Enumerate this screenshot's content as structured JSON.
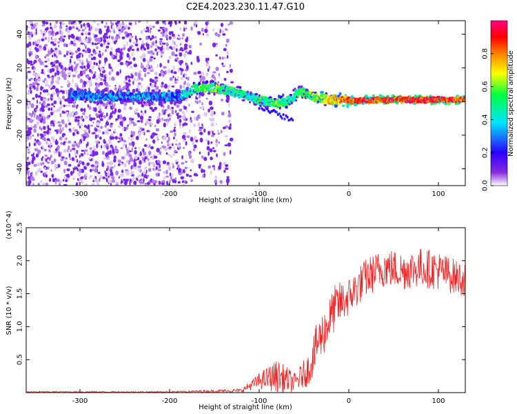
{
  "title": "C2E4.2023.230.11.47.G10",
  "chart_data": [
    {
      "type": "heatmap",
      "name": "spectrogram",
      "xlabel": "Height of straight line (km)",
      "ylabel": "Frequency (Hz)",
      "xlim": [
        -360,
        130
      ],
      "ylim": [
        -50,
        48
      ],
      "xticks": [
        -300,
        -200,
        -100,
        0,
        100
      ],
      "xtick_labels": [
        "-300",
        "-200",
        "-100",
        "0",
        "100"
      ],
      "yticks": [
        -40,
        -20,
        0,
        20,
        40
      ],
      "ytick_labels": [
        "-40",
        "-20",
        "0",
        "20",
        "40"
      ],
      "colorbar": {
        "label": "Normalized spectral amplitude",
        "range": [
          0,
          1
        ],
        "ticks": [
          0.0,
          0.2,
          0.4,
          0.6,
          0.8
        ],
        "tick_labels": [
          "0.0",
          "0.2",
          "0.4",
          "0.6",
          "0.8"
        ],
        "colors": [
          "#ffffff",
          "#8a2be2",
          "#2b00ff",
          "#00e5ff",
          "#00ff40",
          "#ffff00",
          "#ff8000",
          "#ff0000",
          "#ff0080"
        ]
      },
      "ridge": {
        "x": [
          -310,
          -280,
          -250,
          -220,
          -190,
          -170,
          -150,
          -130,
          -110,
          -95,
          -80,
          -65,
          -55,
          -45,
          -35,
          -20,
          -10,
          0,
          20,
          50,
          80,
          110,
          130
        ],
        "freq": [
          4,
          3,
          3,
          3,
          3,
          8,
          8,
          6,
          3,
          0,
          -1,
          1,
          6,
          4,
          2,
          1,
          1,
          0,
          1,
          1,
          1,
          1,
          1
        ],
        "amplitude": [
          0.3,
          0.3,
          0.3,
          0.3,
          0.3,
          0.55,
          0.55,
          0.5,
          0.45,
          0.5,
          0.55,
          0.45,
          0.5,
          0.55,
          0.6,
          0.7,
          0.75,
          0.85,
          0.88,
          0.9,
          0.9,
          0.88,
          0.85
        ]
      }
    },
    {
      "type": "line",
      "name": "snr",
      "xlabel": "Height of straight line (km)",
      "ylabel": "SNR (10 * v/v)",
      "y_multiplier": "(x10^4)",
      "xlim": [
        -360,
        130
      ],
      "ylim": [
        0,
        2.5
      ],
      "xticks": [
        -300,
        -200,
        -100,
        0,
        100
      ],
      "xtick_labels": [
        "-300",
        "-200",
        "-100",
        "0",
        "100"
      ],
      "yticks": [
        0.5,
        1.0,
        1.5,
        2.0,
        2.5
      ],
      "ytick_labels": [
        "0.5",
        "1.0",
        "1.5",
        "2.0",
        "2.5"
      ],
      "color": "#ee2222",
      "envelope": {
        "x": [
          -360,
          -200,
          -120,
          -100,
          -80,
          -60,
          -45,
          -35,
          -25,
          -15,
          0,
          20,
          40,
          60,
          80,
          100,
          130
        ],
        "mean": [
          0.01,
          0.01,
          0.03,
          0.18,
          0.25,
          0.15,
          0.35,
          0.75,
          1.0,
          1.3,
          1.45,
          1.75,
          1.9,
          1.85,
          1.9,
          1.85,
          1.7
        ],
        "spread": [
          0.01,
          0.01,
          0.03,
          0.12,
          0.25,
          0.15,
          0.25,
          0.35,
          0.35,
          0.35,
          0.3,
          0.3,
          0.3,
          0.3,
          0.3,
          0.3,
          0.25
        ]
      }
    }
  ]
}
